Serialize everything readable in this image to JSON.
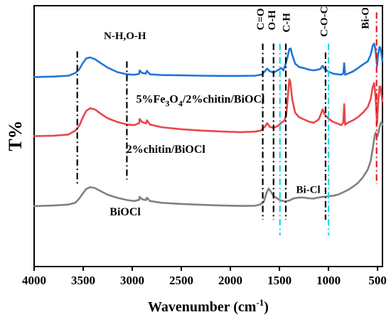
{
  "chart_data": {
    "type": "line",
    "title": "",
    "xlabel": "Wavenumber (cm",
    "xlabel_sup": "-1",
    "xlabel_tail": ")",
    "ylabel": "T%",
    "xlim": [
      4000,
      450
    ],
    "x_reversed": true,
    "y_ticks_shown": false,
    "grid": false,
    "legend": "none",
    "x_ticks": [
      {
        "value": 4000,
        "label": "4000"
      },
      {
        "value": 3500,
        "label": "3500"
      },
      {
        "value": 3000,
        "label": "3000"
      },
      {
        "value": 2500,
        "label": "2500"
      },
      {
        "value": 2000,
        "label": "2000"
      },
      {
        "value": 1500,
        "label": "1500"
      },
      {
        "value": 1000,
        "label": "1000"
      },
      {
        "value": 500,
        "label": "500"
      }
    ],
    "series": [
      {
        "label_parts": [
          {
            "t": "5%Fe",
            "sub": false
          },
          {
            "t": "3",
            "sub": true
          },
          {
            "t": "O",
            "sub": false
          },
          {
            "t": "4",
            "sub": true
          },
          {
            "t": "/2%chitin/BiOCl",
            "sub": false
          }
        ],
        "label_x": 2960,
        "label_y": 73.5,
        "color": "#1f77d4",
        "points": [
          [
            4000,
            85
          ],
          [
            3800,
            85.2
          ],
          [
            3650,
            85.6
          ],
          [
            3580,
            86.8
          ],
          [
            3540,
            88.5
          ],
          [
            3500,
            91.5
          ],
          [
            3470,
            93.3
          ],
          [
            3430,
            93.8
          ],
          [
            3380,
            93
          ],
          [
            3320,
            91.2
          ],
          [
            3250,
            89.2
          ],
          [
            3150,
            87.2
          ],
          [
            3050,
            86.2
          ],
          [
            2980,
            86
          ],
          [
            2930,
            86.4
          ],
          [
            2925,
            88
          ],
          [
            2900,
            86.8
          ],
          [
            2860,
            86.6
          ],
          [
            2850,
            87.8
          ],
          [
            2820,
            86.2
          ],
          [
            2700,
            85.9
          ],
          [
            2500,
            85.8
          ],
          [
            2300,
            85.6
          ],
          [
            2100,
            85.5
          ],
          [
            1900,
            85.5
          ],
          [
            1750,
            85.6
          ],
          [
            1680,
            86.1
          ],
          [
            1650,
            87.5
          ],
          [
            1625,
            88.8
          ],
          [
            1600,
            87.6
          ],
          [
            1560,
            87
          ],
          [
            1520,
            88
          ],
          [
            1480,
            89
          ],
          [
            1460,
            88
          ],
          [
            1440,
            90.5
          ],
          [
            1420,
            93.5
          ],
          [
            1400,
            97.5
          ],
          [
            1385,
            97.8
          ],
          [
            1370,
            95
          ],
          [
            1340,
            91
          ],
          [
            1300,
            89.5
          ],
          [
            1250,
            89
          ],
          [
            1200,
            88.3
          ],
          [
            1150,
            88
          ],
          [
            1100,
            88.4
          ],
          [
            1080,
            88.8
          ],
          [
            1060,
            90
          ],
          [
            1040,
            88.6
          ],
          [
            1000,
            87.4
          ],
          [
            950,
            86.5
          ],
          [
            900,
            86.2
          ],
          [
            870,
            86
          ],
          [
            850,
            86.6
          ],
          [
            840,
            91.2
          ],
          [
            830,
            86
          ],
          [
            800,
            86.6
          ],
          [
            750,
            87.5
          ],
          [
            700,
            89
          ],
          [
            650,
            90.6
          ],
          [
            600,
            92
          ],
          [
            570,
            95
          ],
          [
            550,
            99
          ],
          [
            535,
            100
          ],
          [
            520,
            97
          ],
          [
            505,
            90
          ],
          [
            495,
            95
          ],
          [
            480,
            98.5
          ],
          [
            470,
            98
          ],
          [
            460,
            95
          ],
          [
            450,
            92
          ]
        ]
      },
      {
        "label_parts": [
          {
            "t": "2%chitin/BiOCl",
            "sub": false
          }
        ],
        "label_x": 3060,
        "label_y": 51,
        "color": "#e8474a",
        "points": [
          [
            4000,
            58.5
          ],
          [
            3800,
            58.7
          ],
          [
            3650,
            59.2
          ],
          [
            3580,
            61
          ],
          [
            3540,
            63.2
          ],
          [
            3500,
            67.2
          ],
          [
            3470,
            69.8
          ],
          [
            3430,
            71
          ],
          [
            3380,
            70.5
          ],
          [
            3320,
            68.5
          ],
          [
            3250,
            66.5
          ],
          [
            3150,
            64.8
          ],
          [
            3050,
            63.7
          ],
          [
            2980,
            63.4
          ],
          [
            2930,
            64.3
          ],
          [
            2925,
            66.2
          ],
          [
            2900,
            64.8
          ],
          [
            2860,
            64.2
          ],
          [
            2850,
            65.6
          ],
          [
            2820,
            63.7
          ],
          [
            2700,
            62.5
          ],
          [
            2500,
            61.6
          ],
          [
            2300,
            61
          ],
          [
            2100,
            60.6
          ],
          [
            1900,
            60.3
          ],
          [
            1750,
            60.5
          ],
          [
            1690,
            61
          ],
          [
            1650,
            62.6
          ],
          [
            1625,
            64.3
          ],
          [
            1600,
            62.7
          ],
          [
            1560,
            62.2
          ],
          [
            1520,
            63
          ],
          [
            1480,
            64.5
          ],
          [
            1450,
            65.5
          ],
          [
            1430,
            68
          ],
          [
            1415,
            76
          ],
          [
            1400,
            84
          ],
          [
            1390,
            83
          ],
          [
            1370,
            75
          ],
          [
            1340,
            69
          ],
          [
            1300,
            67
          ],
          [
            1250,
            66
          ],
          [
            1200,
            65
          ],
          [
            1150,
            64.5
          ],
          [
            1100,
            66
          ],
          [
            1080,
            68
          ],
          [
            1060,
            70.5
          ],
          [
            1040,
            68.3
          ],
          [
            1000,
            66.3
          ],
          [
            950,
            64.8
          ],
          [
            900,
            64
          ],
          [
            870,
            63.4
          ],
          [
            850,
            64.5
          ],
          [
            840,
            72.8
          ],
          [
            830,
            63.6
          ],
          [
            800,
            64.6
          ],
          [
            750,
            65.6
          ],
          [
            700,
            67
          ],
          [
            650,
            69
          ],
          [
            600,
            71.5
          ],
          [
            570,
            75
          ],
          [
            550,
            80.5
          ],
          [
            535,
            82.3
          ],
          [
            520,
            76
          ],
          [
            505,
            64
          ],
          [
            495,
            73
          ],
          [
            480,
            80.8
          ],
          [
            470,
            80.7
          ],
          [
            460,
            77
          ],
          [
            450,
            74
          ]
        ]
      },
      {
        "label_parts": [
          {
            "t": "BiOCl",
            "sub": false
          }
        ],
        "label_x": 3230,
        "label_y": 23,
        "color": "#808080",
        "points": [
          [
            4000,
            27.1
          ],
          [
            3800,
            27.4
          ],
          [
            3650,
            27.8
          ],
          [
            3580,
            28.6
          ],
          [
            3540,
            30.5
          ],
          [
            3500,
            33
          ],
          [
            3470,
            34.8
          ],
          [
            3430,
            35.6
          ],
          [
            3380,
            35.2
          ],
          [
            3320,
            33.8
          ],
          [
            3250,
            32.2
          ],
          [
            3150,
            30.8
          ],
          [
            3050,
            29.8
          ],
          [
            2980,
            29.4
          ],
          [
            2930,
            29.9
          ],
          [
            2925,
            31.3
          ],
          [
            2900,
            30.2
          ],
          [
            2860,
            29.8
          ],
          [
            2850,
            30.9
          ],
          [
            2820,
            29.4
          ],
          [
            2700,
            28.6
          ],
          [
            2500,
            28.1
          ],
          [
            2300,
            27.7
          ],
          [
            2100,
            27.4
          ],
          [
            1900,
            27.2
          ],
          [
            1750,
            27.3
          ],
          [
            1700,
            27.8
          ],
          [
            1660,
            29
          ],
          [
            1630,
            33.2
          ],
          [
            1610,
            35
          ],
          [
            1590,
            33.8
          ],
          [
            1560,
            31.6
          ],
          [
            1500,
            29.9
          ],
          [
            1450,
            29.2
          ],
          [
            1400,
            29.6
          ],
          [
            1360,
            30.5
          ],
          [
            1300,
            31
          ],
          [
            1250,
            30.9
          ],
          [
            1200,
            30.6
          ],
          [
            1150,
            30.5
          ],
          [
            1100,
            31
          ],
          [
            1050,
            31.3
          ],
          [
            1000,
            31.5
          ],
          [
            950,
            31.8
          ],
          [
            900,
            32.3
          ],
          [
            850,
            33.3
          ],
          [
            800,
            34.4
          ],
          [
            750,
            35.8
          ],
          [
            700,
            37.5
          ],
          [
            650,
            40
          ],
          [
            600,
            43.5
          ],
          [
            570,
            47.3
          ],
          [
            550,
            52.7
          ],
          [
            540,
            55.7
          ],
          [
            530,
            58.7
          ],
          [
            520,
            60
          ],
          [
            510,
            59
          ],
          [
            500,
            58.5
          ],
          [
            490,
            60.5
          ],
          [
            480,
            62.5
          ],
          [
            470,
            64
          ],
          [
            460,
            64.8
          ],
          [
            450,
            63.5
          ]
        ]
      }
    ],
    "vlines": [
      {
        "x": 3560,
        "y0": 36,
        "y1": 96.5,
        "color": "#000000",
        "dash": "dashdot"
      },
      {
        "x": 3055,
        "y0": 39,
        "y1": 92,
        "color": "#000000",
        "dash": "dashdot"
      },
      {
        "x": 1670,
        "y0": 21,
        "y1": 100,
        "color": "#000000",
        "dash": "dashdot"
      },
      {
        "x": 1560,
        "y0": 21,
        "y1": 100,
        "color": "#000000",
        "dash": "dashdot"
      },
      {
        "x": 1435,
        "y0": 21,
        "y1": 100,
        "color": "#000000",
        "dash": "dashdot"
      },
      {
        "x": 1030,
        "y0": 21,
        "y1": 96,
        "color": "#000000",
        "dash": "dashdot"
      },
      {
        "x": 1495,
        "y0": 14,
        "y1": 100,
        "color": "#18d7ea",
        "dash": "dashdot"
      },
      {
        "x": 1000,
        "y0": 14,
        "y1": 100,
        "color": "#18d7ea",
        "dash": "dashdot"
      },
      {
        "x": 510,
        "y0": 37,
        "y1": 114,
        "color": "#e41a1c",
        "dash": "dashdot"
      }
    ],
    "annotations": [
      {
        "text": "N-H,O-H",
        "x": 3290,
        "y": 102,
        "rotate": false
      },
      {
        "text": "C=O",
        "x": 1660,
        "y": 106,
        "rotate": true
      },
      {
        "text": "O-H",
        "x": 1545,
        "y": 106,
        "rotate": true
      },
      {
        "text": "C-H",
        "x": 1395,
        "y": 105,
        "rotate": true
      },
      {
        "text": "C-O-C",
        "x": 1010,
        "y": 103,
        "rotate": true
      },
      {
        "text": "Bi-O",
        "x": 590,
        "y": 106.5,
        "rotate": true
      },
      {
        "text": "Bi-Cl",
        "x": 1330,
        "y": 33,
        "rotate": false
      }
    ]
  }
}
